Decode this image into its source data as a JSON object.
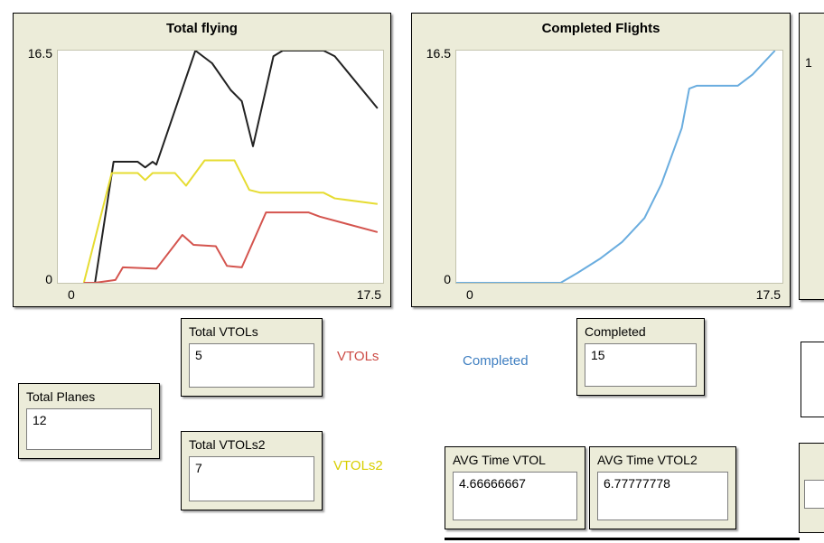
{
  "colors": {
    "panel_beige": "#ECECD9",
    "plot_background": "#FFFFFF",
    "series_total": "#222222",
    "series_vtols": "#D4544E",
    "series_vtols2": "#E6DC32",
    "series_completed": "#6AADDF",
    "label_vtols": "#CC4A44",
    "label_completed": "#3F7FC1",
    "label_vtols2": "#D8CE00"
  },
  "chart_data": [
    {
      "type": "line",
      "title": "Total flying",
      "xlabel": "",
      "ylabel": "",
      "xlim": [
        0,
        17.5
      ],
      "ylim": [
        0,
        16.5
      ],
      "xmin_label": "0",
      "xmax_label": "17.5",
      "ymin_label": "0",
      "ymax_label": "16.5",
      "grid": false,
      "legend": "none",
      "series": [
        {
          "name": "total-flying",
          "color": "#222222",
          "points": [
            [
              1.4,
              0
            ],
            [
              2.0,
              0
            ],
            [
              3.0,
              8.6
            ],
            [
              4.3,
              8.6
            ],
            [
              4.7,
              8.2
            ],
            [
              5.1,
              8.6
            ],
            [
              5.3,
              8.4
            ],
            [
              7.4,
              16.5
            ],
            [
              8.3,
              15.6
            ],
            [
              9.3,
              13.7
            ],
            [
              9.9,
              12.9
            ],
            [
              10.5,
              9.7
            ],
            [
              11.6,
              16.1
            ],
            [
              12.1,
              16.5
            ],
            [
              14.3,
              16.5
            ],
            [
              14.9,
              16.1
            ],
            [
              17.2,
              12.4
            ]
          ]
        },
        {
          "name": "vtols2-flying",
          "color": "#E6DC32",
          "points": [
            [
              1.4,
              0
            ],
            [
              2.9,
              7.8
            ],
            [
              4.3,
              7.8
            ],
            [
              4.7,
              7.3
            ],
            [
              5.1,
              7.8
            ],
            [
              6.3,
              7.8
            ],
            [
              6.9,
              6.9
            ],
            [
              7.9,
              8.7
            ],
            [
              9.5,
              8.7
            ],
            [
              10.3,
              6.6
            ],
            [
              10.9,
              6.4
            ],
            [
              14.3,
              6.4
            ],
            [
              14.9,
              6.0
            ],
            [
              17.2,
              5.6
            ]
          ]
        },
        {
          "name": "vtols-flying",
          "color": "#D4544E",
          "points": [
            [
              1.4,
              0
            ],
            [
              2.0,
              0
            ],
            [
              3.1,
              0.2
            ],
            [
              3.5,
              1.1
            ],
            [
              5.3,
              1.0
            ],
            [
              6.7,
              3.4
            ],
            [
              7.3,
              2.7
            ],
            [
              8.5,
              2.6
            ],
            [
              9.1,
              1.2
            ],
            [
              9.9,
              1.1
            ],
            [
              11.2,
              5.0
            ],
            [
              13.5,
              5.0
            ],
            [
              14.1,
              4.7
            ],
            [
              17.2,
              3.6
            ]
          ]
        }
      ]
    },
    {
      "type": "line",
      "title": "Completed Flights",
      "xlabel": "",
      "ylabel": "",
      "xlim": [
        0,
        17.5
      ],
      "ylim": [
        0,
        16.5
      ],
      "xmin_label": "0",
      "xmax_label": "17.5",
      "ymin_label": "0",
      "ymax_label": "16.5",
      "grid": false,
      "legend": "none",
      "series": [
        {
          "name": "completed-flights",
          "color": "#6AADDF",
          "points": [
            [
              0,
              0
            ],
            [
              5.6,
              0
            ],
            [
              6.5,
              0.7
            ],
            [
              7.7,
              1.7
            ],
            [
              8.9,
              2.9
            ],
            [
              10.1,
              4.6
            ],
            [
              11.0,
              7.0
            ],
            [
              12.1,
              11.0
            ],
            [
              12.5,
              13.8
            ],
            [
              12.9,
              14.0
            ],
            [
              15.1,
              14.0
            ],
            [
              15.9,
              14.8
            ],
            [
              17.1,
              16.5
            ]
          ]
        }
      ]
    }
  ],
  "monitors": {
    "total_vtols": {
      "label": "Total VTOLs",
      "value": "5"
    },
    "completed": {
      "label": "Completed",
      "value": "15"
    },
    "total_planes": {
      "label": "Total Planes",
      "value": "12"
    },
    "total_vtols2": {
      "label": "Total VTOLs2",
      "value": "7"
    },
    "avg_time_vtol": {
      "label": "AVG Time VTOL",
      "value": "4.66666667"
    },
    "avg_time_vtol2": {
      "label": "AVG Time VTOL2",
      "value": "6.77777778"
    }
  },
  "labels": {
    "vtols": {
      "text": "VTOLs",
      "color": "#CC4A44"
    },
    "completed": {
      "text": "Completed",
      "color": "#3F7FC1"
    },
    "vtols2": {
      "text": "VTOLs2",
      "color": "#D8CE00"
    }
  },
  "partials": {
    "plot_ymax_label": "1"
  }
}
